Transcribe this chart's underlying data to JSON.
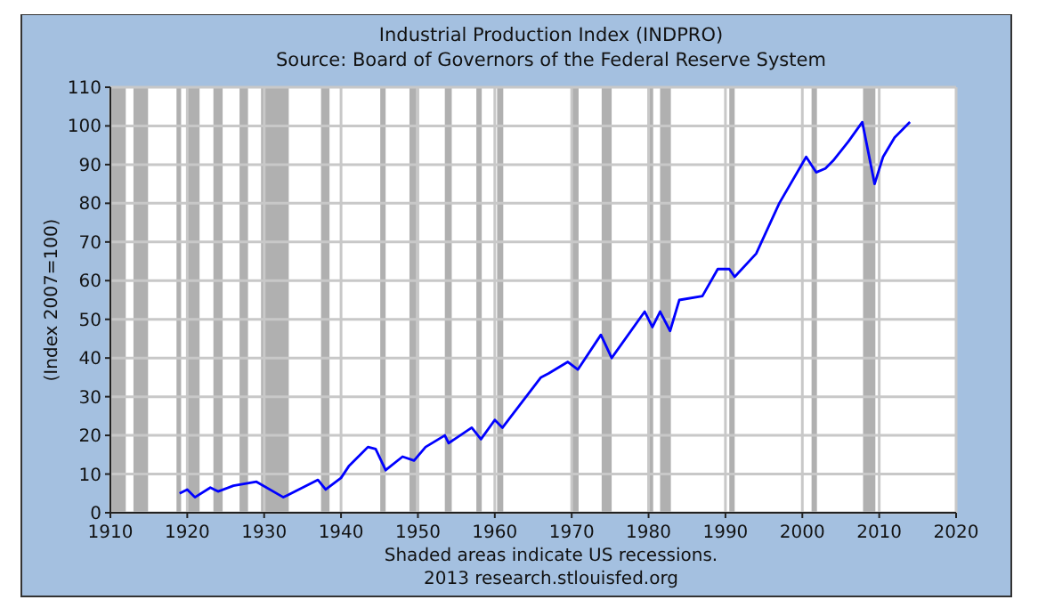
{
  "chart_data": {
    "type": "line",
    "title": "Industrial Production Index (INDPRO)",
    "subtitle": "Source: Board of Governors of the Federal Reserve System",
    "ylabel": "(Index 2007=100)",
    "annotations": [
      "Shaded areas indicate US recessions.",
      "2013 research.stlouisfed.org"
    ],
    "xlim": [
      1910,
      2020
    ],
    "xticks": [
      1910,
      1920,
      1930,
      1940,
      1950,
      1960,
      1970,
      1980,
      1990,
      2000,
      2010,
      2020
    ],
    "ylim": [
      0,
      110
    ],
    "yticks": [
      0,
      10,
      20,
      30,
      40,
      50,
      60,
      70,
      80,
      90,
      100,
      110
    ],
    "grid": true,
    "series": [
      {
        "color": "#0000ff",
        "x": [
          1919,
          1920,
          1921,
          1923,
          1924,
          1926,
          1929,
          1932.5,
          1933,
          1937,
          1938,
          1940,
          1941,
          1943.5,
          1944.5,
          1945.8,
          1948,
          1949.5,
          1951,
          1953.5,
          1954,
          1957,
          1958.2,
          1960,
          1961,
          1966,
          1967,
          1969.5,
          1970.8,
          1973.8,
          1975.2,
          1979.5,
          1980.5,
          1981.5,
          1982.8,
          1984,
          1987,
          1989,
          1990.5,
          1991.2,
          1994,
          1997,
          2000.5,
          2001.8,
          2003,
          2004,
          2006,
          2007.8,
          2009.4,
          2010.5,
          2012,
          2014
        ],
        "values": [
          5,
          6,
          4,
          6.5,
          5.5,
          7,
          8,
          4,
          4.5,
          8.5,
          6,
          9,
          12,
          17,
          16.5,
          11,
          14.5,
          13.5,
          17,
          20,
          18,
          22,
          19,
          24,
          22,
          35,
          36,
          39,
          37,
          46,
          40,
          52,
          48,
          52,
          47,
          55,
          56,
          63,
          63,
          61,
          67,
          80,
          92,
          88,
          89,
          91,
          96,
          101,
          85,
          92,
          97,
          101
        ]
      }
    ],
    "bands": [
      {
        "axis": "x",
        "from": 1910,
        "to": 1912,
        "color": "#b0b0b0"
      },
      {
        "axis": "x",
        "from": 1913,
        "to": 1914.9,
        "color": "#b0b0b0"
      },
      {
        "axis": "x",
        "from": 1918.6,
        "to": 1919.2,
        "color": "#b0b0b0"
      },
      {
        "axis": "x",
        "from": 1920,
        "to": 1921.6,
        "color": "#b0b0b0"
      },
      {
        "axis": "x",
        "from": 1923.4,
        "to": 1924.6,
        "color": "#b0b0b0"
      },
      {
        "axis": "x",
        "from": 1926.8,
        "to": 1927.9,
        "color": "#b0b0b0"
      },
      {
        "axis": "x",
        "from": 1929.6,
        "to": 1933.2,
        "color": "#b0b0b0"
      },
      {
        "axis": "x",
        "from": 1937.4,
        "to": 1938.5,
        "color": "#b0b0b0"
      },
      {
        "axis": "x",
        "from": 1945.1,
        "to": 1945.8,
        "color": "#b0b0b0"
      },
      {
        "axis": "x",
        "from": 1948.9,
        "to": 1949.8,
        "color": "#b0b0b0"
      },
      {
        "axis": "x",
        "from": 1953.5,
        "to": 1954.4,
        "color": "#b0b0b0"
      },
      {
        "axis": "x",
        "from": 1957.6,
        "to": 1958.3,
        "color": "#b0b0b0"
      },
      {
        "axis": "x",
        "from": 1960.3,
        "to": 1961.1,
        "color": "#b0b0b0"
      },
      {
        "axis": "x",
        "from": 1969.9,
        "to": 1970.9,
        "color": "#b0b0b0"
      },
      {
        "axis": "x",
        "from": 1973.9,
        "to": 1975.2,
        "color": "#b0b0b0"
      },
      {
        "axis": "x",
        "from": 1980,
        "to": 1980.6,
        "color": "#b0b0b0"
      },
      {
        "axis": "x",
        "from": 1981.5,
        "to": 1982.9,
        "color": "#b0b0b0"
      },
      {
        "axis": "x",
        "from": 1990.5,
        "to": 1991.2,
        "color": "#b0b0b0"
      },
      {
        "axis": "x",
        "from": 2001.2,
        "to": 2001.9,
        "color": "#b0b0b0"
      },
      {
        "axis": "x",
        "from": 2007.9,
        "to": 2009.5,
        "color": "#b0b0b0"
      }
    ]
  }
}
